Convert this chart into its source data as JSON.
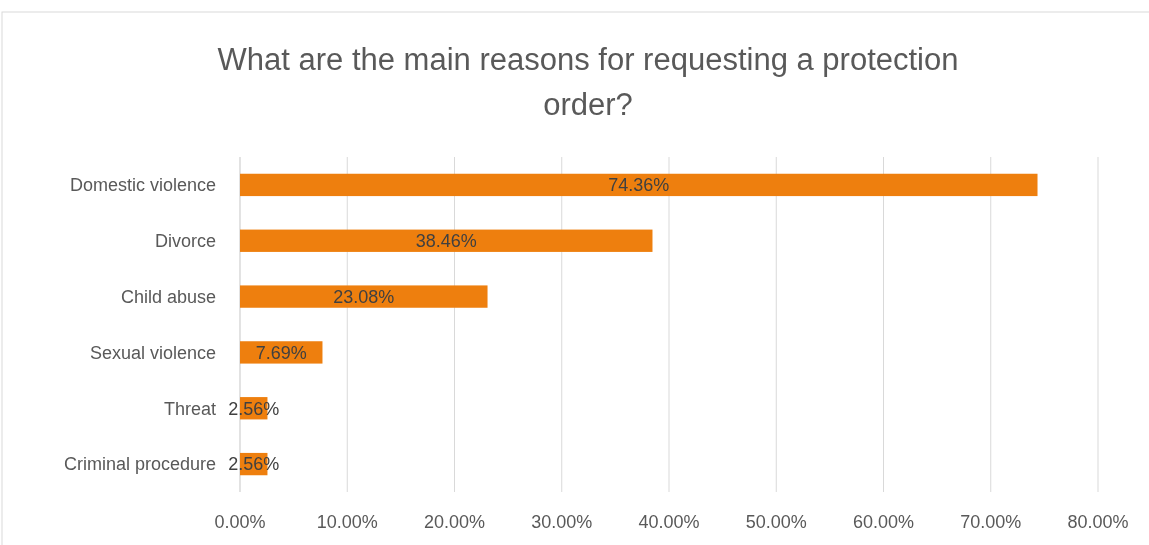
{
  "chart_data": {
    "type": "bar",
    "orientation": "horizontal",
    "title": "What are the main reasons for requesting a protection order?",
    "categories": [
      "Domestic violence",
      "Divorce",
      "Child abuse",
      "Sexual violence",
      "Threat",
      "Criminal procedure"
    ],
    "values": [
      74.36,
      38.46,
      23.08,
      7.69,
      2.56,
      2.56
    ],
    "value_labels": [
      "74.36%",
      "38.46%",
      "23.08%",
      "7.69%",
      "2.56%",
      "2.56%"
    ],
    "color": "#ee7f0e",
    "xlim": [
      0,
      80
    ],
    "xticks": [
      {
        "value": 0,
        "label": "0.00%"
      },
      {
        "value": 10,
        "label": "10.00%"
      },
      {
        "value": 20,
        "label": "20.00%"
      },
      {
        "value": 30,
        "label": "30.00%"
      },
      {
        "value": 40,
        "label": "40.00%"
      },
      {
        "value": 50,
        "label": "50.00%"
      },
      {
        "value": 60,
        "label": "60.00%"
      },
      {
        "value": 70,
        "label": "70.00%"
      },
      {
        "value": 80,
        "label": "80.00%"
      }
    ],
    "grid": "x"
  }
}
